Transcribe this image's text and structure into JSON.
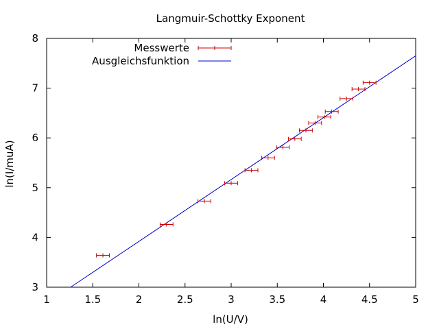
{
  "chart_data": {
    "type": "scatter",
    "title": "Langmuir-Schottky Exponent",
    "xlabel": "ln(U/V)",
    "ylabel": "ln(I/muA)",
    "xlim": [
      1,
      5
    ],
    "ylim": [
      3,
      8
    ],
    "xticks": [
      "1",
      "1.5",
      "2",
      "2.5",
      "3",
      "3.5",
      "4",
      "4.5",
      "5"
    ],
    "yticks": [
      "3",
      "4",
      "5",
      "6",
      "7",
      "8"
    ],
    "grid": false,
    "legend_position": "top-left",
    "series": [
      {
        "name": "Messwerte",
        "kind": "xerrorbars",
        "color": "#cc0000",
        "points": [
          {
            "x": 1.61,
            "y": 3.64,
            "xerr": 0.07
          },
          {
            "x": 2.3,
            "y": 4.26,
            "xerr": 0.07
          },
          {
            "x": 2.71,
            "y": 4.73,
            "xerr": 0.07
          },
          {
            "x": 3.0,
            "y": 5.09,
            "xerr": 0.07
          },
          {
            "x": 3.22,
            "y": 5.35,
            "xerr": 0.07
          },
          {
            "x": 3.4,
            "y": 5.6,
            "xerr": 0.07
          },
          {
            "x": 3.56,
            "y": 5.81,
            "xerr": 0.07
          },
          {
            "x": 3.69,
            "y": 5.98,
            "xerr": 0.07
          },
          {
            "x": 3.81,
            "y": 6.15,
            "xerr": 0.07
          },
          {
            "x": 3.91,
            "y": 6.3,
            "xerr": 0.07
          },
          {
            "x": 4.01,
            "y": 6.42,
            "xerr": 0.07
          },
          {
            "x": 4.09,
            "y": 6.53,
            "xerr": 0.07
          },
          {
            "x": 4.25,
            "y": 6.79,
            "xerr": 0.07
          },
          {
            "x": 4.38,
            "y": 6.98,
            "xerr": 0.07
          },
          {
            "x": 4.5,
            "y": 7.11,
            "xerr": 0.07
          }
        ]
      },
      {
        "name": "Ausgleichsfunktion",
        "kind": "line",
        "color": "#0000cc",
        "x": [
          1.26,
          5.0
        ],
        "y": [
          3.0,
          7.65
        ]
      }
    ]
  }
}
